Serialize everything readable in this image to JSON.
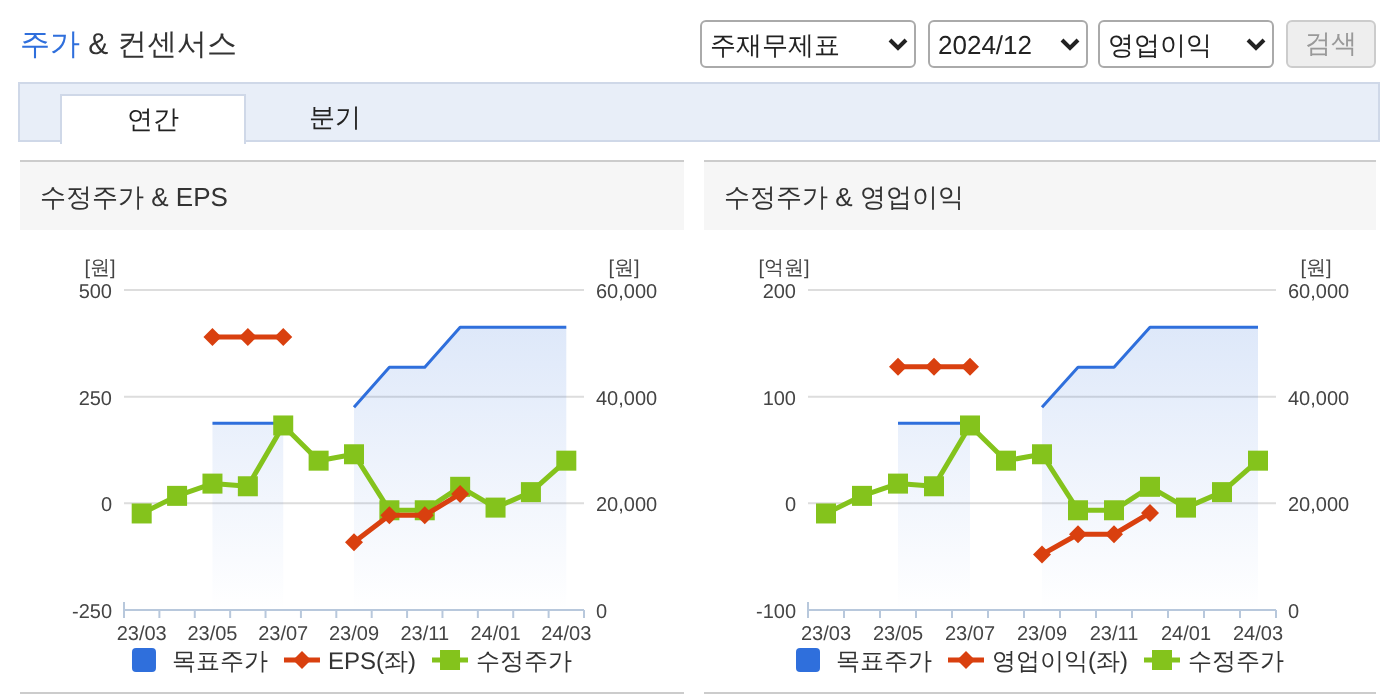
{
  "chart_data": [
    {
      "type": "other",
      "title": "주가 & 컨센서스",
      "annotations": [
        "주재무제표",
        "2024/12",
        "영업이익",
        "검색",
        "연간",
        "분기"
      ]
    },
    {
      "type": "line",
      "title": "수정주가 & EPS",
      "ylabel": "[원]",
      "y2label": "[원]",
      "categories": [
        "23/03",
        null,
        "23/05",
        null,
        "23/07",
        null,
        "23/09",
        null,
        "23/11",
        null,
        "24/01",
        null,
        "24/03"
      ],
      "ylim": [
        -250,
        500
      ],
      "yticks": [
        -250,
        0,
        250,
        500
      ],
      "y2lim": [
        0,
        60000
      ],
      "y2ticks": [
        0,
        {
          "value": 20000,
          "label": "20,000"
        },
        {
          "value": 40000,
          "label": "40,000"
        },
        {
          "value": 60000,
          "label": "60,000"
        }
      ],
      "grid": "y",
      "legend": "bottom",
      "series": [
        {
          "name": "목표주가",
          "type": "area",
          "axis": "y2",
          "color": "#2f6fdc",
          "marker": "none",
          "values": [
            null,
            null,
            35000,
            35000,
            35000,
            null,
            38000,
            45500,
            45500,
            53000,
            53000,
            53000,
            53000
          ]
        },
        {
          "name": "EPS(좌)",
          "type": "line",
          "color": "#d9400f",
          "marker": "diamond",
          "values": [
            null,
            null,
            390,
            390,
            390,
            null,
            -91,
            -28,
            -28,
            22,
            null,
            null,
            null
          ]
        },
        {
          "name": "수정주가",
          "type": "line",
          "axis": "y2",
          "color": "#84c31c",
          "marker": "square",
          "values": [
            18100,
            21400,
            23700,
            23200,
            34600,
            28000,
            29200,
            18700,
            18700,
            23100,
            19200,
            22100,
            28000
          ]
        }
      ]
    },
    {
      "type": "line",
      "title": "수정주가 & 영업이익",
      "ylabel": "[억원]",
      "y2label": "[원]",
      "categories": [
        "23/03",
        null,
        "23/05",
        null,
        "23/07",
        null,
        "23/09",
        null,
        "23/11",
        null,
        "24/01",
        null,
        "24/03"
      ],
      "ylim": [
        -100,
        200
      ],
      "yticks": [
        -100,
        0,
        100,
        200
      ],
      "y2lim": [
        0,
        60000
      ],
      "y2ticks": [
        0,
        {
          "value": 20000,
          "label": "20,000"
        },
        {
          "value": 40000,
          "label": "40,000"
        },
        {
          "value": 60000,
          "label": "60,000"
        }
      ],
      "grid": "y",
      "legend": "bottom",
      "series": [
        {
          "name": "목표주가",
          "type": "area",
          "axis": "y2",
          "color": "#2f6fdc",
          "marker": "none",
          "values": [
            null,
            null,
            35000,
            35000,
            35000,
            null,
            38000,
            45500,
            45500,
            53000,
            53000,
            53000,
            53000
          ]
        },
        {
          "name": "영업이익(좌)",
          "type": "line",
          "color": "#d9400f",
          "marker": "diamond",
          "values": [
            null,
            null,
            128,
            128,
            128,
            null,
            -48,
            -29,
            -29,
            -9,
            null,
            null,
            null
          ]
        },
        {
          "name": "수정주가",
          "type": "line",
          "axis": "y2",
          "color": "#84c31c",
          "marker": "square",
          "values": [
            18100,
            21400,
            23700,
            23200,
            34600,
            28000,
            29200,
            18700,
            18700,
            23100,
            19200,
            22100,
            28000
          ]
        }
      ]
    }
  ]
}
